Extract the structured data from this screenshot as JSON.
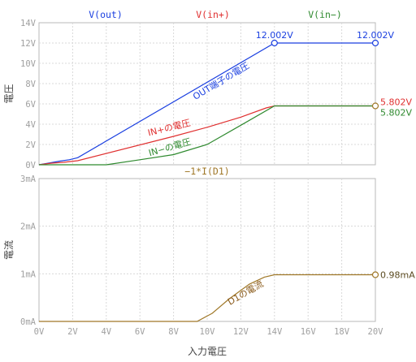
{
  "chart_data": [
    {
      "type": "line",
      "title": "",
      "xlabel": "",
      "ylabel": "電圧",
      "xlim": [
        0,
        20
      ],
      "ylim": [
        0,
        14
      ],
      "y_ticks": [
        "0V",
        "2V",
        "4V",
        "6V",
        "8V",
        "10V",
        "12V",
        "14V"
      ],
      "grid": true,
      "legend": [
        "V(out)",
        "V(in+)",
        "V(in−)"
      ],
      "series": [
        {
          "name": "V(out)",
          "color": "#1a3fe0",
          "x": [
            0,
            0.7,
            1.2,
            1.8,
            2.3,
            14,
            20
          ],
          "values": [
            0,
            0.2,
            0.35,
            0.5,
            0.7,
            12.002,
            12.002
          ],
          "annotation": "OUT端子の電圧",
          "end_label": "12.002V",
          "marker_label": "12.002V",
          "marker_x": 14
        },
        {
          "name": "V(in+)",
          "color": "#e03030",
          "x": [
            0,
            0.7,
            1.5,
            2.3,
            8,
            10,
            12,
            13.5,
            14,
            20
          ],
          "values": [
            0,
            0.15,
            0.25,
            0.4,
            2.8,
            3.7,
            4.7,
            5.6,
            5.802,
            5.802
          ],
          "annotation": "IN+の電圧",
          "end_label": "5.802V"
        },
        {
          "name": "V(in−)",
          "color": "#2f8a2f",
          "x": [
            0,
            4,
            6,
            8,
            10,
            12,
            14,
            20
          ],
          "values": [
            0,
            0,
            0.5,
            1.0,
            2.0,
            3.9,
            5.802,
            5.802
          ],
          "annotation": "IN−の電圧",
          "end_label": "5.802V"
        }
      ]
    },
    {
      "type": "line",
      "title": "",
      "xlabel": "入力電圧",
      "ylabel": "電流",
      "xlim": [
        0,
        20
      ],
      "ylim": [
        0,
        3
      ],
      "x_ticks": [
        "0V",
        "2V",
        "4V",
        "6V",
        "8V",
        "10V",
        "12V",
        "14V",
        "16V",
        "18V",
        "20V"
      ],
      "y_ticks": [
        "0mA",
        "1mA",
        "2mA",
        "3mA"
      ],
      "grid": true,
      "legend": [
        "−1*I(D1)"
      ],
      "series": [
        {
          "name": "−1*I(D1)",
          "color": "#a07828",
          "x": [
            0,
            9.4,
            10.3,
            11.3,
            12.5,
            13.4,
            14,
            20
          ],
          "values": [
            0,
            0,
            0.17,
            0.47,
            0.78,
            0.93,
            0.98,
            0.98
          ],
          "annotation": "D1の電流",
          "end_label": "0.98mA"
        }
      ]
    }
  ]
}
